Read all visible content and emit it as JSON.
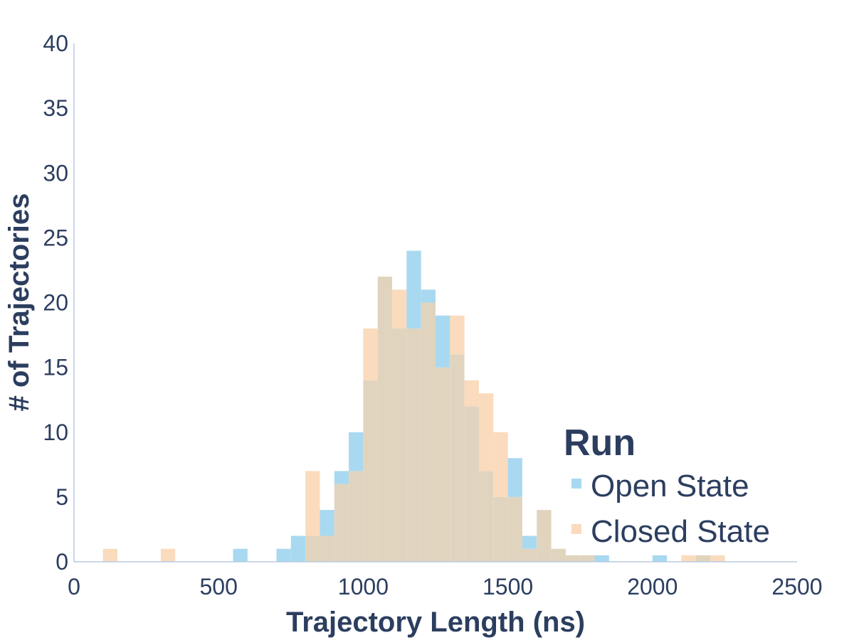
{
  "chart_data": {
    "type": "bar",
    "xlabel": "Trajectory Length (ns)",
    "ylabel": "# of Trajectories",
    "xlim": [
      0,
      2500
    ],
    "ylim": [
      0,
      40
    ],
    "xticks": [
      "0",
      "500",
      "1000",
      "1500",
      "2000",
      "2500"
    ],
    "yticks": [
      "0",
      "5",
      "10",
      "15",
      "20",
      "25",
      "30",
      "35",
      "40"
    ],
    "bin_width": 50,
    "bin_starts": [
      100,
      150,
      200,
      250,
      300,
      350,
      400,
      450,
      500,
      550,
      600,
      650,
      700,
      750,
      800,
      850,
      900,
      950,
      1000,
      1050,
      1100,
      1150,
      1200,
      1250,
      1300,
      1350,
      1400,
      1450,
      1500,
      1550,
      1600,
      1650,
      1700,
      1750,
      1800,
      1850,
      1900,
      1950,
      2000,
      2050,
      2100,
      2150,
      2200
    ],
    "overlap_color": "#e1d4bf",
    "grid": false,
    "legend": {
      "title": "Run",
      "position": "bottom-right"
    },
    "series": [
      {
        "name": "Open State",
        "color": "#a8d9f0",
        "values": [
          0,
          0,
          0,
          0,
          0,
          0,
          0,
          0,
          0,
          1,
          0,
          0,
          1,
          2,
          2,
          4,
          7,
          10,
          14,
          22,
          18,
          24,
          21,
          19,
          16,
          12,
          7,
          5,
          8,
          2,
          4,
          1,
          0.5,
          0.5,
          0.5,
          0,
          0,
          0,
          0.5,
          0,
          0,
          0.5,
          0
        ]
      },
      {
        "name": "Closed State",
        "color": "#fadbbd",
        "values": [
          1,
          0,
          0,
          0,
          1,
          0,
          0,
          0,
          0,
          0,
          0,
          0,
          0,
          0,
          7,
          2,
          6,
          7,
          18,
          22,
          21,
          18,
          20,
          15,
          19,
          14,
          13,
          10,
          5,
          1,
          4,
          1,
          0.5,
          0.5,
          0,
          0,
          0,
          0,
          0,
          0,
          0.5,
          0.5,
          0.5
        ]
      }
    ]
  }
}
